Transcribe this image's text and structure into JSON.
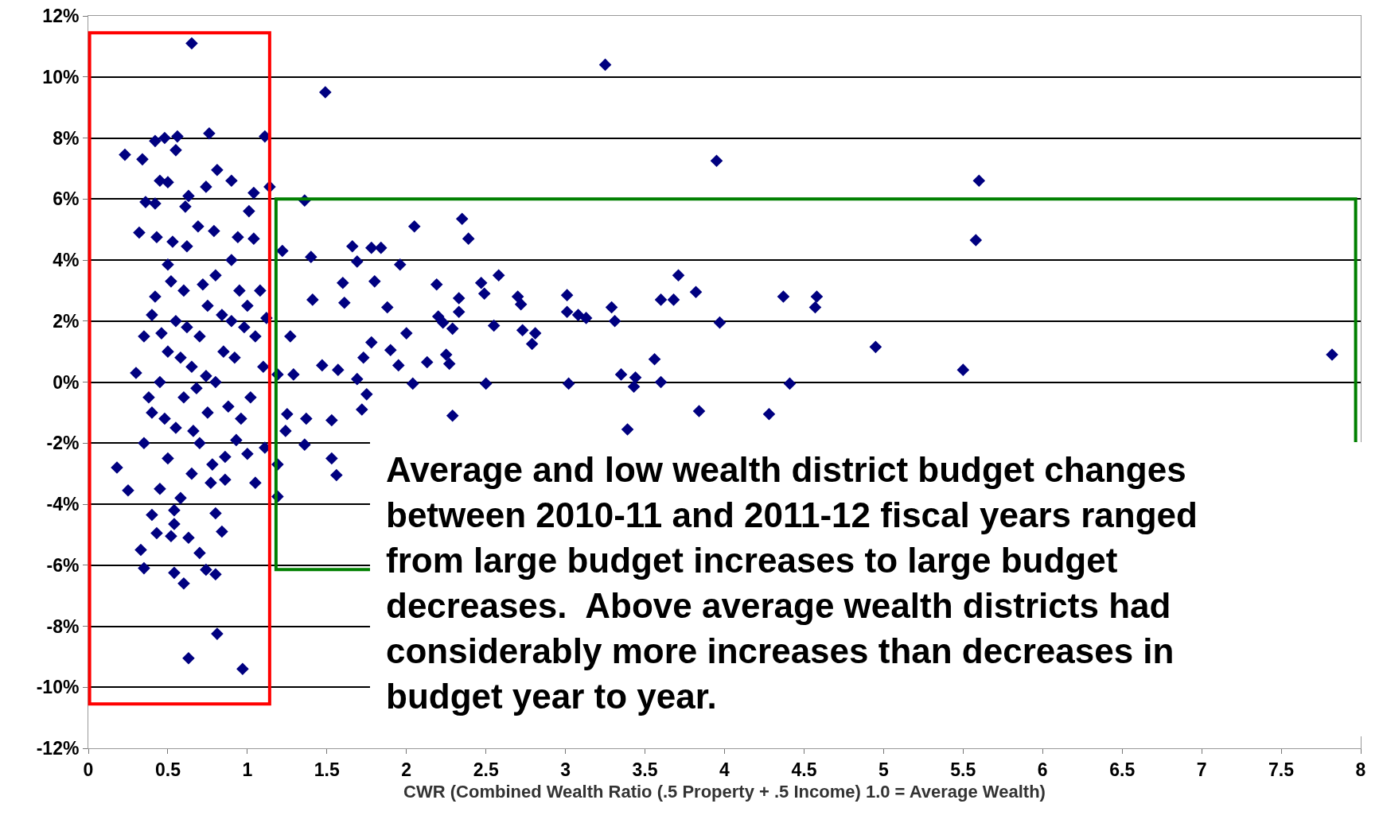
{
  "chart_data": {
    "type": "scatter",
    "xlabel": "CWR (Combined Wealth Ratio (.5 Property + .5 Income) 1.0 = Average Wealth)",
    "annotations": [
      "Average and low wealth district budget changes\nbetween 2010-11 and 2011-12 fiscal years ranged\nfrom large budget increases to large budget\ndecreases.  Above average wealth districts had\nconsiderably more increases than decreases in\nbudget year to year."
    ],
    "xlim": [
      0,
      8
    ],
    "xticks": [
      0,
      0.5,
      1,
      1.5,
      2,
      2.5,
      3,
      3.5,
      4,
      4.5,
      5,
      5.5,
      6,
      6.5,
      7,
      7.5,
      8
    ],
    "ylim": [
      -12,
      12
    ],
    "yticks": [
      {
        "value": -12,
        "label": "-12%"
      },
      {
        "value": -10,
        "label": "-10%"
      },
      {
        "value": -8,
        "label": "-8%"
      },
      {
        "value": -6,
        "label": "-6%"
      },
      {
        "value": -4,
        "label": "-4%"
      },
      {
        "value": -2,
        "label": "-2%"
      },
      {
        "value": 0,
        "label": "0%"
      },
      {
        "value": 2,
        "label": "2%"
      },
      {
        "value": 4,
        "label": "4%"
      },
      {
        "value": 6,
        "label": "6%"
      },
      {
        "value": 8,
        "label": "8%"
      },
      {
        "value": 10,
        "label": "10%"
      },
      {
        "value": 12,
        "label": "12%"
      }
    ],
    "grid": "y",
    "marker": "diamond",
    "series": [
      {
        "color": "#000080",
        "x": [
          0.65,
          3.25,
          1.49,
          3.95,
          5.6,
          5.58,
          7.82,
          5.5,
          4.95,
          4.37,
          4.58,
          4.57,
          4.41,
          4.28,
          3.84,
          3.97,
          3.82,
          3.71,
          3.68,
          3.6,
          3.6,
          3.56,
          3.44,
          3.43,
          3.39,
          3.35,
          3.31,
          3.29,
          3.13,
          3.08,
          3.02,
          3.01,
          3.01,
          2.81,
          2.79,
          2.73,
          2.72,
          2.7,
          2.58,
          2.55,
          2.49,
          2.47,
          2.5,
          2.39,
          2.35,
          2.33,
          2.33,
          2.29,
          2.29,
          2.27,
          2.25,
          2.23,
          2.2,
          2.19,
          2.13,
          2.05,
          2.04,
          2.0,
          1.96,
          1.95,
          1.9,
          1.88,
          1.84,
          1.78,
          1.8,
          1.78,
          1.69,
          1.66,
          1.73,
          1.75,
          1.69,
          1.72,
          1.61,
          1.6,
          1.57,
          1.53,
          1.53,
          1.56,
          1.47,
          1.41,
          1.4,
          1.37,
          1.36,
          1.29,
          1.27,
          1.25,
          1.24,
          1.22,
          1.19,
          1.19,
          1.19,
          1.36,
          1.14,
          1.11,
          0.23,
          0.34,
          0.42,
          0.48,
          0.56,
          0.76,
          0.55,
          0.45,
          0.5,
          0.81,
          0.9,
          0.74,
          0.63,
          1.04,
          0.36,
          0.42,
          0.61,
          1.01,
          0.69,
          0.79,
          0.32,
          0.43,
          0.53,
          0.62,
          0.94,
          1.04,
          0.9,
          0.5,
          0.18,
          0.25,
          0.33,
          0.35,
          0.4,
          0.54,
          0.43,
          0.52,
          0.63,
          0.7,
          0.77,
          0.84,
          0.8,
          0.54,
          0.6,
          0.8,
          0.74,
          0.81,
          0.63,
          0.97,
          1.05,
          1.0,
          1.11,
          0.86,
          0.93,
          0.35,
          0.4,
          0.45,
          0.5,
          0.55,
          0.6,
          0.65,
          0.7,
          0.75,
          0.8,
          0.85,
          0.9,
          0.95,
          1.0,
          1.05,
          1.1,
          0.4,
          0.45,
          0.5,
          0.55,
          0.6,
          0.65,
          0.7,
          0.75,
          0.8,
          0.35,
          0.3,
          0.38,
          0.48,
          0.58,
          0.62,
          0.68,
          0.72,
          0.78,
          0.88,
          0.92,
          0.98,
          1.02,
          1.08,
          0.52,
          0.42,
          0.58,
          0.66,
          0.84,
          1.12,
          0.96,
          0.54,
          0.46,
          0.74,
          0.86
        ],
        "values": [
          11.1,
          10.4,
          9.5,
          7.25,
          6.6,
          4.65,
          0.9,
          0.4,
          1.15,
          2.8,
          2.8,
          2.45,
          -0.05,
          -1.05,
          -0.95,
          1.95,
          2.95,
          3.5,
          2.7,
          2.7,
          0,
          0.75,
          0.15,
          -0.15,
          -1.55,
          0.25,
          2.0,
          2.45,
          2.1,
          2.2,
          -0.05,
          2.85,
          2.3,
          1.6,
          1.25,
          1.7,
          2.55,
          2.8,
          3.5,
          1.85,
          2.9,
          3.25,
          -0.05,
          4.7,
          5.35,
          2.75,
          2.3,
          1.75,
          -1.1,
          0.6,
          0.9,
          1.95,
          2.15,
          3.2,
          0.65,
          5.1,
          -0.05,
          1.6,
          3.85,
          0.55,
          1.05,
          2.45,
          4.4,
          4.4,
          3.3,
          1.3,
          3.95,
          4.45,
          0.8,
          -0.4,
          0.1,
          -0.9,
          2.6,
          3.25,
          0.4,
          -1.25,
          -2.5,
          -3.05,
          0.55,
          2.7,
          4.1,
          -1.2,
          -2.05,
          0.25,
          1.5,
          -1.05,
          -1.6,
          4.3,
          0.25,
          -3.75,
          -2.7,
          5.95,
          6.4,
          8.05,
          7.45,
          7.3,
          7.9,
          8.0,
          8.05,
          8.15,
          7.6,
          6.6,
          6.55,
          6.95,
          6.6,
          6.4,
          6.1,
          6.2,
          5.9,
          5.85,
          5.75,
          5.6,
          5.1,
          4.95,
          4.9,
          4.75,
          4.6,
          4.45,
          4.75,
          4.7,
          4.0,
          3.85,
          -2.8,
          -3.55,
          -5.5,
          -6.1,
          -4.35,
          -4.65,
          -4.95,
          -5.05,
          -5.1,
          -5.6,
          -3.3,
          -4.9,
          -4.3,
          -6.25,
          -6.6,
          -6.3,
          -6.15,
          -8.25,
          -9.05,
          -9.4,
          -3.3,
          -2.35,
          -2.15,
          -2.45,
          -1.9,
          -2,
          -1,
          0,
          1,
          2,
          3,
          -3,
          -2,
          -1,
          0,
          1,
          2,
          3,
          2.5,
          1.5,
          0.5,
          2.2,
          -3.5,
          -2.5,
          -1.5,
          -0.5,
          0.5,
          1.5,
          2.5,
          3.5,
          1.5,
          0.3,
          -0.5,
          -1.2,
          -3.8,
          1.8,
          -0.2,
          3.2,
          -2.7,
          -0.8,
          0.8,
          1.8,
          -0.5,
          3,
          3.3,
          2.8,
          0.8,
          -1.6,
          2.2,
          2.1,
          -1.2,
          -4.2,
          1.6,
          0.2,
          -3.2
        ]
      }
    ]
  }
}
